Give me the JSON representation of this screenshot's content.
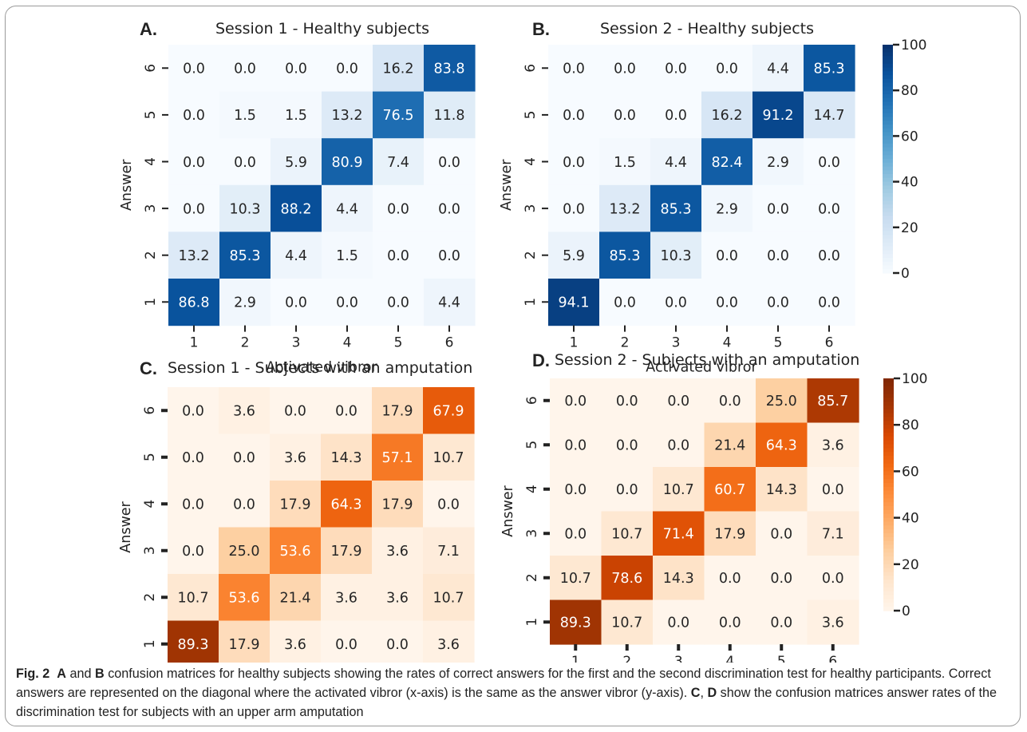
{
  "caption": {
    "fig_label": "Fig. 2",
    "seg1": "A",
    "seg2": " and ",
    "seg3": "B",
    "seg4": " confusion matrices for healthy subjects showing the rates of correct answers for the first and the second discrimination test for healthy participants. Correct answers are represented on the diagonal where the activated vibror (x-axis) is the same as the answer vibror (y-axis). ",
    "seg5": "C",
    "seg6": ", ",
    "seg7": "D",
    "seg8": " show the confusion matrices answer rates of the discrimination test for subjects with an upper arm amputation"
  },
  "colorbars": [
    {
      "colormap": "Blues",
      "ticks": [
        "100",
        "80",
        "60",
        "40",
        "20",
        "0"
      ]
    },
    {
      "colormap": "Oranges",
      "ticks": [
        "100",
        "80",
        "60",
        "40",
        "20",
        "0"
      ]
    }
  ],
  "chart_data": [
    {
      "type": "heatmap",
      "panel": "A.",
      "title": "Session 1 - Healthy subjects",
      "xlabel": "Activated vibror",
      "ylabel": "Answer",
      "x": [
        "1",
        "2",
        "3",
        "4",
        "5",
        "6"
      ],
      "y": [
        "6",
        "5",
        "4",
        "3",
        "2",
        "1"
      ],
      "colormap": "Blues",
      "vmin": 0,
      "vmax": 100,
      "values": [
        [
          0.0,
          0.0,
          0.0,
          0.0,
          16.2,
          83.8
        ],
        [
          0.0,
          1.5,
          1.5,
          13.2,
          76.5,
          11.8
        ],
        [
          0.0,
          0.0,
          5.9,
          80.9,
          7.4,
          0.0
        ],
        [
          0.0,
          10.3,
          88.2,
          4.4,
          0.0,
          0.0
        ],
        [
          13.2,
          85.3,
          4.4,
          1.5,
          0.0,
          0.0
        ],
        [
          86.8,
          2.9,
          0.0,
          0.0,
          0.0,
          4.4
        ]
      ]
    },
    {
      "type": "heatmap",
      "panel": "B.",
      "title": "Session 2 - Healthy subjects",
      "xlabel": "Activated vibror",
      "ylabel": "Answer",
      "x": [
        "1",
        "2",
        "3",
        "4",
        "5",
        "6"
      ],
      "y": [
        "6",
        "5",
        "4",
        "3",
        "2",
        "1"
      ],
      "colormap": "Blues",
      "vmin": 0,
      "vmax": 100,
      "values": [
        [
          0.0,
          0.0,
          0.0,
          0.0,
          4.4,
          85.3
        ],
        [
          0.0,
          0.0,
          0.0,
          16.2,
          91.2,
          14.7
        ],
        [
          0.0,
          1.5,
          4.4,
          82.4,
          2.9,
          0.0
        ],
        [
          0.0,
          13.2,
          85.3,
          2.9,
          0.0,
          0.0
        ],
        [
          5.9,
          85.3,
          10.3,
          0.0,
          0.0,
          0.0
        ],
        [
          94.1,
          0.0,
          0.0,
          0.0,
          0.0,
          0.0
        ]
      ]
    },
    {
      "type": "heatmap",
      "panel": "C.",
      "title": "Session 1 - Subjects with an amputation",
      "xlabel": "Activated virbor",
      "ylabel": "Answer",
      "x": [
        "1",
        "2",
        "3",
        "4",
        "5",
        "6"
      ],
      "y": [
        "6",
        "5",
        "4",
        "3",
        "2",
        "1"
      ],
      "colormap": "Oranges",
      "vmin": 0,
      "vmax": 100,
      "values": [
        [
          0.0,
          3.6,
          0.0,
          0.0,
          17.9,
          67.9
        ],
        [
          0.0,
          0.0,
          3.6,
          14.3,
          57.1,
          10.7
        ],
        [
          0.0,
          0.0,
          17.9,
          64.3,
          17.9,
          0.0
        ],
        [
          0.0,
          25.0,
          53.6,
          17.9,
          3.6,
          7.1
        ],
        [
          10.7,
          53.6,
          21.4,
          3.6,
          3.6,
          10.7
        ],
        [
          89.3,
          17.9,
          3.6,
          0.0,
          0.0,
          3.6
        ]
      ]
    },
    {
      "type": "heatmap",
      "panel": "D.",
      "title": "Session 2 - Subjects with an amputation",
      "xlabel": "Activated vibror",
      "ylabel": "Answer",
      "x": [
        "1",
        "2",
        "3",
        "4",
        "5",
        "6"
      ],
      "y": [
        "6",
        "5",
        "4",
        "3",
        "2",
        "1"
      ],
      "colormap": "Oranges",
      "vmin": 0,
      "vmax": 100,
      "values": [
        [
          0.0,
          0.0,
          0.0,
          0.0,
          25.0,
          85.7
        ],
        [
          0.0,
          0.0,
          0.0,
          21.4,
          64.3,
          3.6
        ],
        [
          0.0,
          0.0,
          10.7,
          60.7,
          14.3,
          0.0
        ],
        [
          0.0,
          10.7,
          71.4,
          17.9,
          0.0,
          7.1
        ],
        [
          10.7,
          78.6,
          14.3,
          0.0,
          0.0,
          0.0
        ],
        [
          89.3,
          10.7,
          0.0,
          0.0,
          0.0,
          3.6
        ]
      ]
    }
  ]
}
